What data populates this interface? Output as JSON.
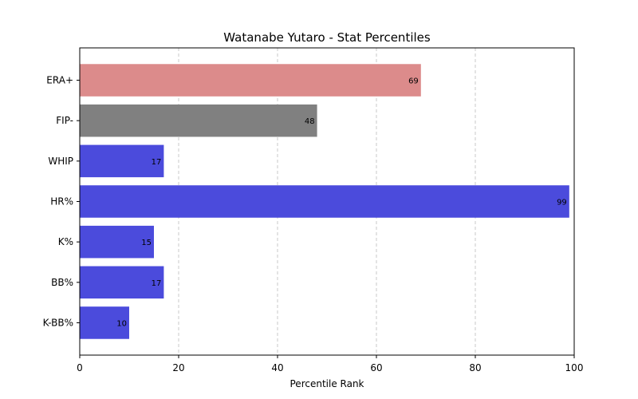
{
  "chart_data": {
    "type": "bar",
    "orientation": "horizontal",
    "title": "Watanabe Yutaro - Stat Percentiles",
    "xlabel": "Percentile Rank",
    "ylabel": "",
    "xlim": [
      0,
      100
    ],
    "xticks": [
      0,
      20,
      40,
      60,
      80,
      100
    ],
    "grid": "x-dashed",
    "categories": [
      "ERA+",
      "FIP-",
      "WHIP",
      "HR%",
      "K%",
      "BB%",
      "K-BB%"
    ],
    "values": [
      69,
      48,
      17,
      99,
      15,
      17,
      10
    ],
    "colors": [
      "#dc8b8b",
      "#808080",
      "#4b4bdc",
      "#4b4bdc",
      "#4b4bdc",
      "#4b4bdc",
      "#4b4bdc"
    ]
  }
}
